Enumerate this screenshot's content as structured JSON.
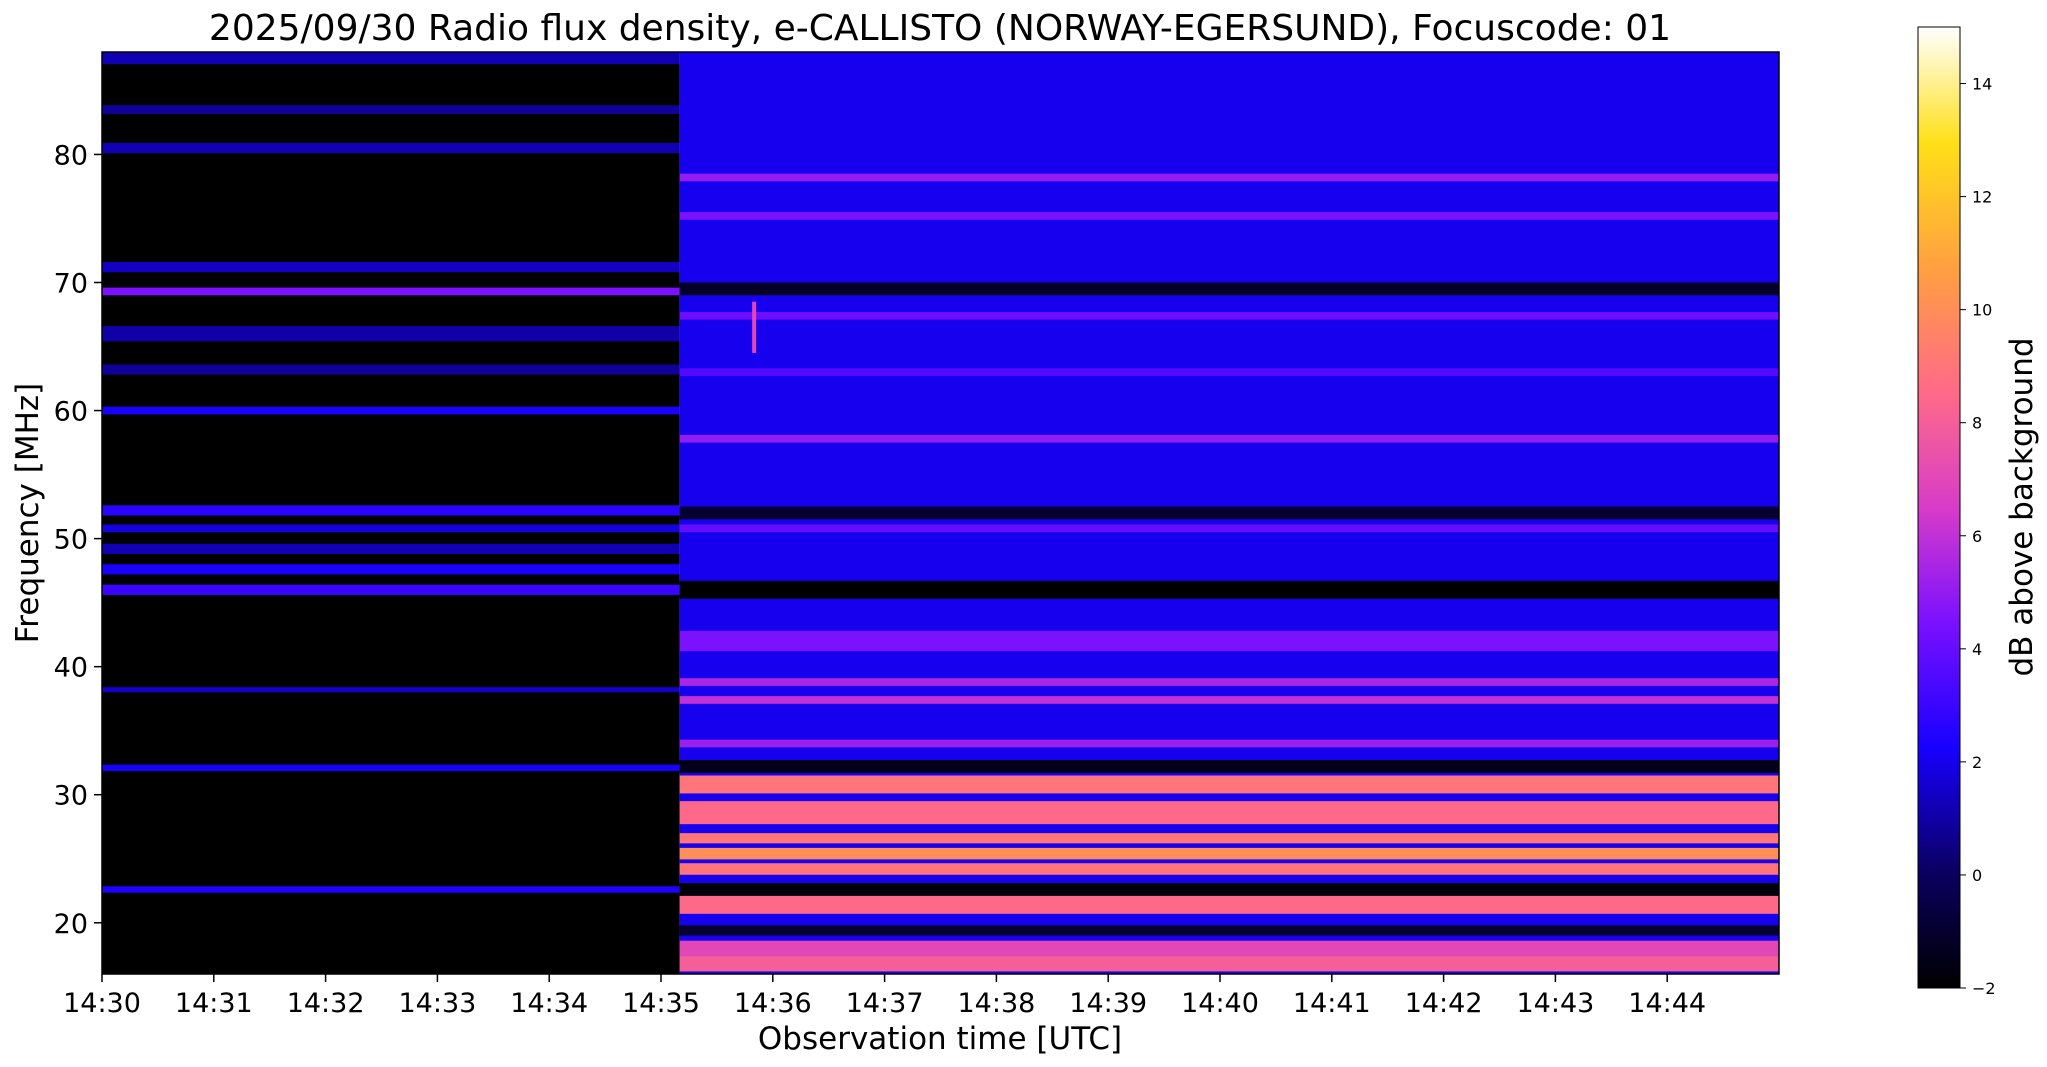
{
  "chart_data": {
    "type": "heatmap",
    "title": "2025/09/30  Radio flux density, e-CALLISTO (NORWAY-EGERSUND), Focuscode: 01",
    "xlabel": "Observation time [UTC]",
    "ylabel": "Frequency [MHz]",
    "xlim": [
      "14:30",
      "14:45"
    ],
    "ylim": [
      16,
      88
    ],
    "x_ticks": [
      "14:30",
      "14:31",
      "14:32",
      "14:33",
      "14:34",
      "14:35",
      "14:36",
      "14:37",
      "14:38",
      "14:39",
      "14:40",
      "14:41",
      "14:42",
      "14:43",
      "14:44"
    ],
    "y_ticks": [
      20,
      30,
      40,
      50,
      60,
      70,
      80
    ],
    "colorbar": {
      "label": "dB above background",
      "range": [
        -2,
        15
      ],
      "ticks": [
        -2,
        0,
        2,
        4,
        6,
        8,
        10,
        12,
        14
      ],
      "colormap": "gnuplot2"
    },
    "regions": [
      {
        "time_start": "14:30",
        "time_end": "14:35:10",
        "description_level_db": -2
      },
      {
        "time_start": "14:35:10",
        "time_end": "14:45",
        "description_level_db": 2
      }
    ],
    "bands": [
      {
        "segment": 0,
        "freq_mhz": 87.5,
        "level_db": 1.2,
        "width_mhz": 0.9
      },
      {
        "segment": 0,
        "freq_mhz": 83.5,
        "level_db": 0.8,
        "width_mhz": 0.7
      },
      {
        "segment": 0,
        "freq_mhz": 80.5,
        "level_db": 1.2,
        "width_mhz": 0.8
      },
      {
        "segment": 0,
        "freq_mhz": 71.2,
        "level_db": 1.4,
        "width_mhz": 0.8
      },
      {
        "segment": 0,
        "freq_mhz": 69.3,
        "level_db": 4.5,
        "width_mhz": 0.6
      },
      {
        "segment": 0,
        "freq_mhz": 66.0,
        "level_db": 1.0,
        "width_mhz": 1.2
      },
      {
        "segment": 0,
        "freq_mhz": 63.2,
        "level_db": 0.8,
        "width_mhz": 0.8
      },
      {
        "segment": 0,
        "freq_mhz": 60.0,
        "level_db": 2.3,
        "width_mhz": 0.6
      },
      {
        "segment": 0,
        "freq_mhz": 52.2,
        "level_db": 2.6,
        "width_mhz": 0.8
      },
      {
        "segment": 0,
        "freq_mhz": 50.8,
        "level_db": 1.8,
        "width_mhz": 0.6
      },
      {
        "segment": 0,
        "freq_mhz": 49.2,
        "level_db": 1.2,
        "width_mhz": 0.8
      },
      {
        "segment": 0,
        "freq_mhz": 47.6,
        "level_db": 2.2,
        "width_mhz": 0.8
      },
      {
        "segment": 0,
        "freq_mhz": 46.0,
        "level_db": 3.0,
        "width_mhz": 0.8
      },
      {
        "segment": 0,
        "freq_mhz": 38.2,
        "level_db": 1.5,
        "width_mhz": 0.4
      },
      {
        "segment": 0,
        "freq_mhz": 32.1,
        "level_db": 2.2,
        "width_mhz": 0.5
      },
      {
        "segment": 0,
        "freq_mhz": 22.6,
        "level_db": 2.4,
        "width_mhz": 0.5
      },
      {
        "segment": 1,
        "freq_mhz": 78.2,
        "level_db": 5.0,
        "width_mhz": 0.6
      },
      {
        "segment": 1,
        "freq_mhz": 75.2,
        "level_db": 4.5,
        "width_mhz": 0.6
      },
      {
        "segment": 1,
        "freq_mhz": 69.5,
        "level_db": -1.2,
        "width_mhz": 1.0
      },
      {
        "segment": 1,
        "freq_mhz": 67.4,
        "level_db": 4.2,
        "width_mhz": 0.6
      },
      {
        "segment": 1,
        "freq_mhz": 63.0,
        "level_db": 3.6,
        "width_mhz": 0.6
      },
      {
        "segment": 1,
        "freq_mhz": 57.8,
        "level_db": 5.0,
        "width_mhz": 0.6
      },
      {
        "segment": 1,
        "freq_mhz": 52.0,
        "level_db": -1.0,
        "width_mhz": 1.0
      },
      {
        "segment": 1,
        "freq_mhz": 50.8,
        "level_db": 4.0,
        "width_mhz": 0.6
      },
      {
        "segment": 1,
        "freq_mhz": 46.0,
        "level_db": -2.0,
        "width_mhz": 1.4
      },
      {
        "segment": 1,
        "freq_mhz": 42.0,
        "level_db": 4.5,
        "width_mhz": 1.6
      },
      {
        "segment": 1,
        "freq_mhz": 38.8,
        "level_db": 5.5,
        "width_mhz": 0.6
      },
      {
        "segment": 1,
        "freq_mhz": 37.4,
        "level_db": 6.0,
        "width_mhz": 0.6
      },
      {
        "segment": 1,
        "freq_mhz": 34.0,
        "level_db": 5.2,
        "width_mhz": 0.6
      },
      {
        "segment": 1,
        "freq_mhz": 32.2,
        "level_db": -1.5,
        "width_mhz": 1.0
      },
      {
        "segment": 1,
        "freq_mhz": 30.8,
        "level_db": 9.0,
        "width_mhz": 1.4
      },
      {
        "segment": 1,
        "freq_mhz": 28.6,
        "level_db": 8.5,
        "width_mhz": 1.8
      },
      {
        "segment": 1,
        "freq_mhz": 26.6,
        "level_db": 9.0,
        "width_mhz": 0.8
      },
      {
        "segment": 1,
        "freq_mhz": 25.4,
        "level_db": 10.0,
        "width_mhz": 0.9
      },
      {
        "segment": 1,
        "freq_mhz": 24.2,
        "level_db": 9.0,
        "width_mhz": 0.9
      },
      {
        "segment": 1,
        "freq_mhz": 22.6,
        "level_db": -1.8,
        "width_mhz": 1.0
      },
      {
        "segment": 1,
        "freq_mhz": 21.4,
        "level_db": 8.5,
        "width_mhz": 1.4
      },
      {
        "segment": 1,
        "freq_mhz": 19.4,
        "level_db": -1.0,
        "width_mhz": 0.8
      },
      {
        "segment": 1,
        "freq_mhz": 18.0,
        "level_db": 7.0,
        "width_mhz": 1.2
      },
      {
        "segment": 1,
        "freq_mhz": 16.8,
        "level_db": 8.0,
        "width_mhz": 1.2
      }
    ],
    "events": [
      {
        "time": "14:35:50",
        "freq_start_mhz": 64.5,
        "freq_end_mhz": 68.5,
        "level_db": 7.0
      }
    ]
  }
}
